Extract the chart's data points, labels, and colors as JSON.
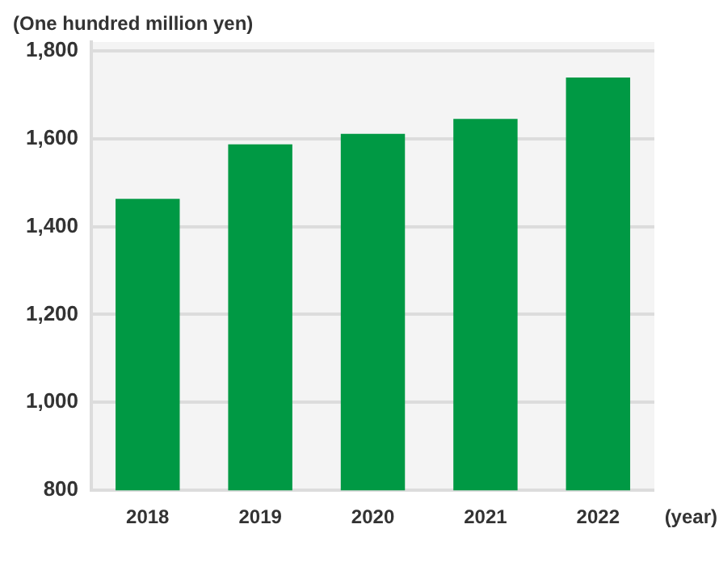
{
  "chart_data": {
    "type": "bar",
    "ylabel": "(One hundred million yen)",
    "xlabel": "(year)",
    "categories": [
      "2018",
      "2019",
      "2020",
      "2021",
      "2022"
    ],
    "values": [
      1463,
      1587,
      1611,
      1645,
      1739
    ],
    "color": "#009944",
    "ylim": [
      800,
      1820
    ],
    "yticks": [
      800,
      {
        "value": 1000,
        "label": "1,000"
      },
      {
        "value": 1200,
        "label": "1,200"
      },
      {
        "value": 1400,
        "label": "1,400"
      },
      {
        "value": 1600,
        "label": "1,600"
      },
      {
        "value": 1800,
        "label": "1,800"
      }
    ],
    "grid": "y"
  }
}
